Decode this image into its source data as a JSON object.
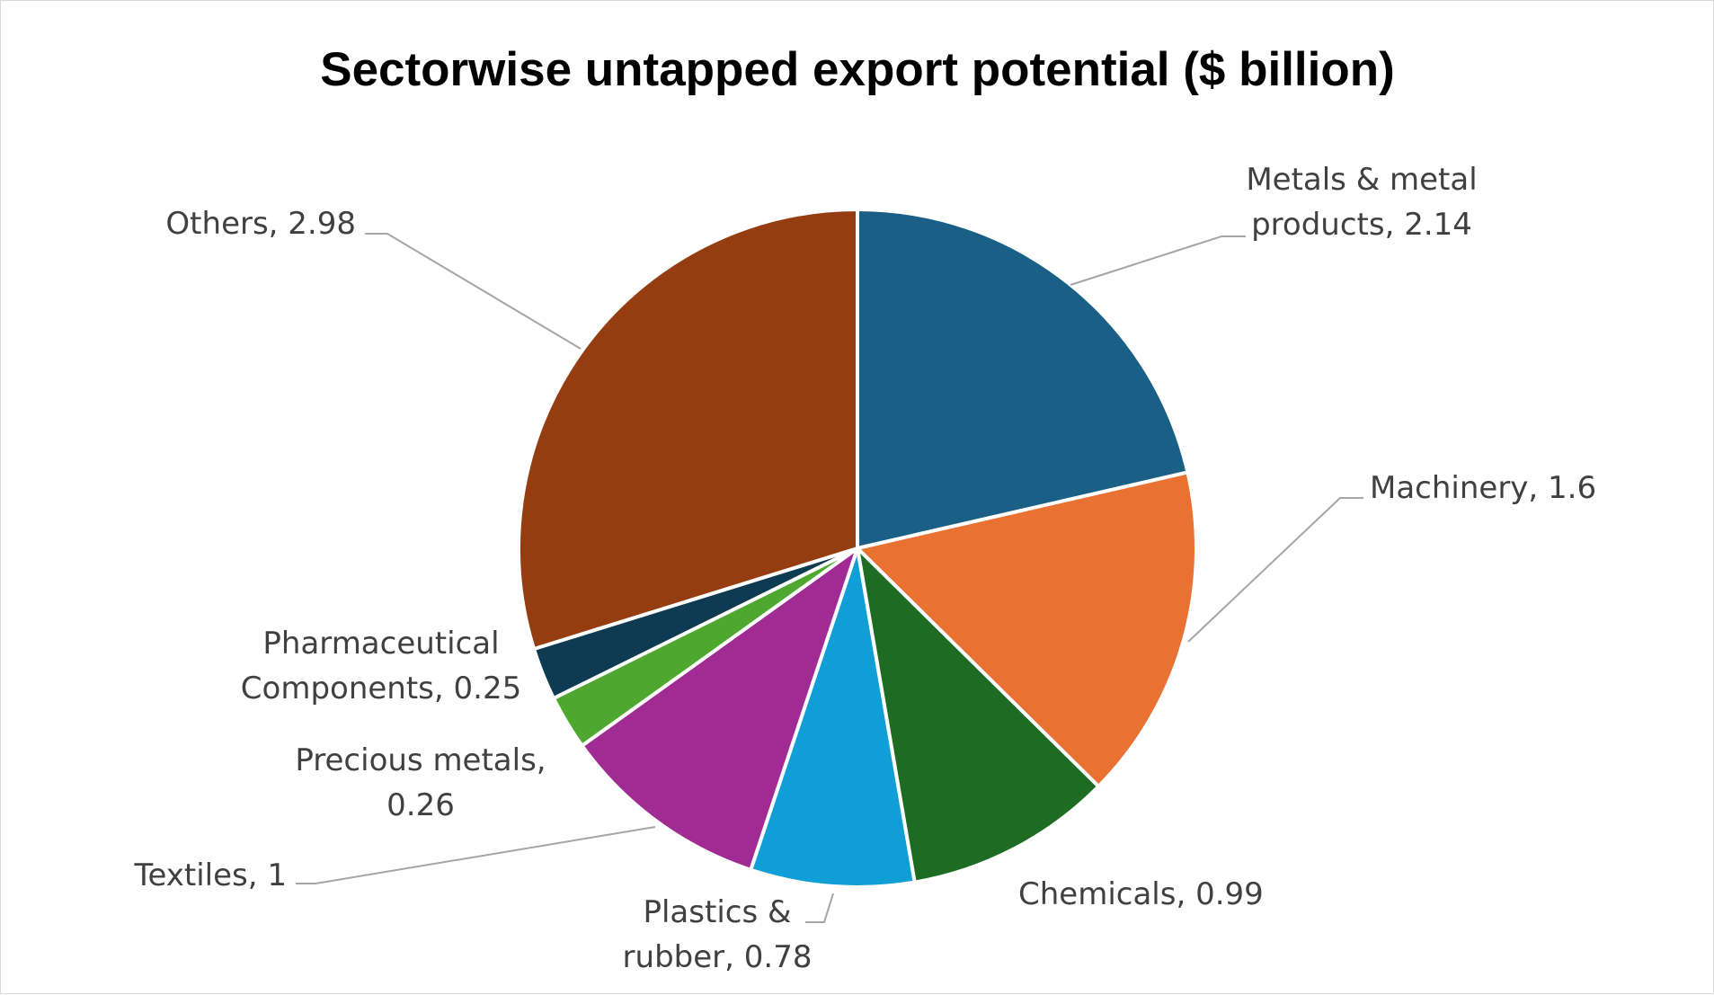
{
  "chart_data": {
    "type": "pie",
    "title": "Sectorwise untapped export potential ($ billion)",
    "slices": [
      {
        "name": "Metals & metal products",
        "value": 2.14,
        "label_lines": [
          "Metals & metal",
          "products, 2.14"
        ],
        "color": "#1a5f85"
      },
      {
        "name": "Machinery",
        "value": 1.6,
        "label_lines": [
          "Machinery, 1.6"
        ],
        "color": "#e97132"
      },
      {
        "name": "Chemicals",
        "value": 0.99,
        "label_lines": [
          "Chemicals, 0.99"
        ],
        "color": "#1e6b24"
      },
      {
        "name": "Plastics & rubber",
        "value": 0.78,
        "label_lines": [
          "Plastics &",
          "rubber, 0.78"
        ],
        "color": "#0f9ed5"
      },
      {
        "name": "Textiles",
        "value": 1,
        "label_lines": [
          "Textiles, 1"
        ],
        "color": "#a02b93"
      },
      {
        "name": "Precious metals",
        "value": 0.26,
        "label_lines": [
          "Precious metals,",
          "0.26"
        ],
        "color": "#4ea72e"
      },
      {
        "name": "Pharmaceutical Components",
        "value": 0.25,
        "label_lines": [
          "Pharmaceutical",
          "Components, 0.25"
        ],
        "color": "#0e3a52"
      },
      {
        "name": "Others",
        "value": 2.98,
        "label_lines": [
          "Others, 2.98"
        ],
        "color": "#953d10"
      }
    ],
    "start_angle": "12 o'clock",
    "direction": "clockwise",
    "legend": "none",
    "data_labels": "outside with leader lines"
  }
}
